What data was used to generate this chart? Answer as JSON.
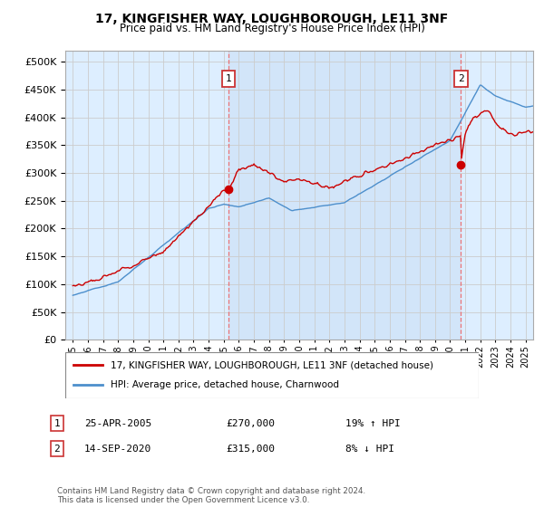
{
  "title": "17, KINGFISHER WAY, LOUGHBOROUGH, LE11 3NF",
  "subtitle": "Price paid vs. HM Land Registry's House Price Index (HPI)",
  "ylim": [
    0,
    520000
  ],
  "yticks": [
    0,
    50000,
    100000,
    150000,
    200000,
    250000,
    300000,
    350000,
    400000,
    450000,
    500000
  ],
  "xlim_start": 1994.5,
  "xlim_end": 2025.5,
  "legend_label_red": "17, KINGFISHER WAY, LOUGHBOROUGH, LE11 3NF (detached house)",
  "legend_label_blue": "HPI: Average price, detached house, Charnwood",
  "transaction1_label": "1",
  "transaction1_date": "25-APR-2005",
  "transaction1_price": "£270,000",
  "transaction1_hpi": "19% ↑ HPI",
  "transaction2_label": "2",
  "transaction2_date": "14-SEP-2020",
  "transaction2_price": "£315,000",
  "transaction2_hpi": "8% ↓ HPI",
  "footnote": "Contains HM Land Registry data © Crown copyright and database right 2024.\nThis data is licensed under the Open Government Licence v3.0.",
  "color_red": "#cc0000",
  "color_blue": "#4d8fcc",
  "color_grid": "#cccccc",
  "color_bg_chart": "#ddeeff",
  "color_bg_fig": "#ffffff",
  "transaction1_x": 2005.32,
  "transaction2_x": 2020.71,
  "transaction1_y": 270000,
  "transaction2_y": 315000
}
